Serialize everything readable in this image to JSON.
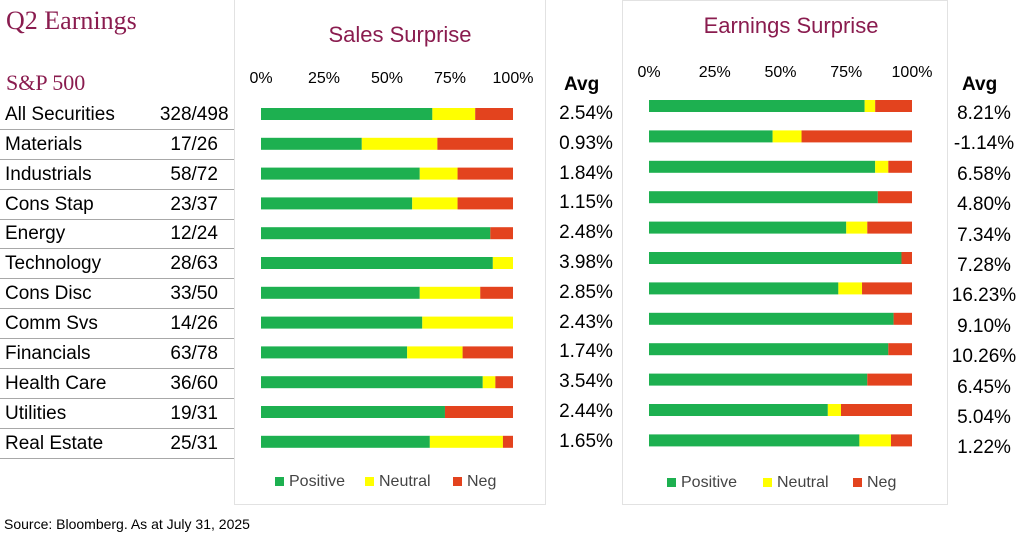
{
  "title": "Q2 Earnings",
  "subtitle": "S&P 500",
  "source": "Source: Bloomberg. As at July 31, 2025",
  "avg_label": "Avg",
  "colors": {
    "positive": "#1db050",
    "neutral": "#ffff00",
    "neg": "#e3431e",
    "title": "#8a1c4f"
  },
  "rows": [
    {
      "name": "All Securities",
      "count": "328/498"
    },
    {
      "name": "Materials",
      "count": "17/26"
    },
    {
      "name": "Industrials",
      "count": "58/72"
    },
    {
      "name": "Cons Stap",
      "count": "23/37"
    },
    {
      "name": "Energy",
      "count": "12/24"
    },
    {
      "name": "Technology",
      "count": "28/63"
    },
    {
      "name": "Cons Disc",
      "count": "33/50"
    },
    {
      "name": "Comm Svs",
      "count": "14/26"
    },
    {
      "name": "Financials",
      "count": "63/78"
    },
    {
      "name": "Health Care",
      "count": "36/60"
    },
    {
      "name": "Utilities",
      "count": "19/31"
    },
    {
      "name": "Real Estate",
      "count": "25/31"
    }
  ],
  "chart_data": [
    {
      "type": "bar",
      "orientation": "horizontal-stacked-100",
      "title": "Sales Surprise",
      "xlim": [
        0,
        100
      ],
      "x_ticks": [
        "0%",
        "25%",
        "50%",
        "75%",
        "100%"
      ],
      "legend": [
        "Positive",
        "Neutral",
        "Neg"
      ],
      "legend_position": "bottom",
      "series": [
        {
          "name": "Positive",
          "values": [
            68,
            40,
            63,
            60,
            91,
            92,
            63,
            64,
            58,
            88,
            73,
            67
          ]
        },
        {
          "name": "Neutral",
          "values": [
            17,
            30,
            15,
            18,
            0,
            8,
            24,
            36,
            22,
            5,
            0,
            29
          ]
        },
        {
          "name": "Neg",
          "values": [
            15,
            30,
            22,
            22,
            9,
            0,
            13,
            0,
            20,
            7,
            27,
            4
          ]
        }
      ],
      "avg": [
        "2.54%",
        "0.93%",
        "1.84%",
        "1.15%",
        "2.48%",
        "3.98%",
        "2.85%",
        "2.43%",
        "1.74%",
        "3.54%",
        "2.44%",
        "1.65%"
      ]
    },
    {
      "type": "bar",
      "orientation": "horizontal-stacked-100",
      "title": "Earnings Surprise",
      "xlim": [
        0,
        100
      ],
      "x_ticks": [
        "0%",
        "25%",
        "50%",
        "75%",
        "100%"
      ],
      "legend": [
        "Positive",
        "Neutral",
        "Neg"
      ],
      "legend_position": "bottom",
      "series": [
        {
          "name": "Positive",
          "values": [
            82,
            47,
            86,
            87,
            75,
            96,
            72,
            93,
            91,
            83,
            68,
            80
          ]
        },
        {
          "name": "Neutral",
          "values": [
            4,
            11,
            5,
            0,
            8,
            0,
            9,
            0,
            0,
            0,
            5,
            12
          ]
        },
        {
          "name": "Neg",
          "values": [
            14,
            42,
            9,
            13,
            17,
            4,
            19,
            7,
            9,
            17,
            27,
            8
          ]
        }
      ],
      "avg": [
        "8.21%",
        "-1.14%",
        "6.58%",
        "4.80%",
        "7.34%",
        "7.28%",
        "16.23%",
        "9.10%",
        "10.26%",
        "6.45%",
        "5.04%",
        "1.22%"
      ]
    }
  ]
}
